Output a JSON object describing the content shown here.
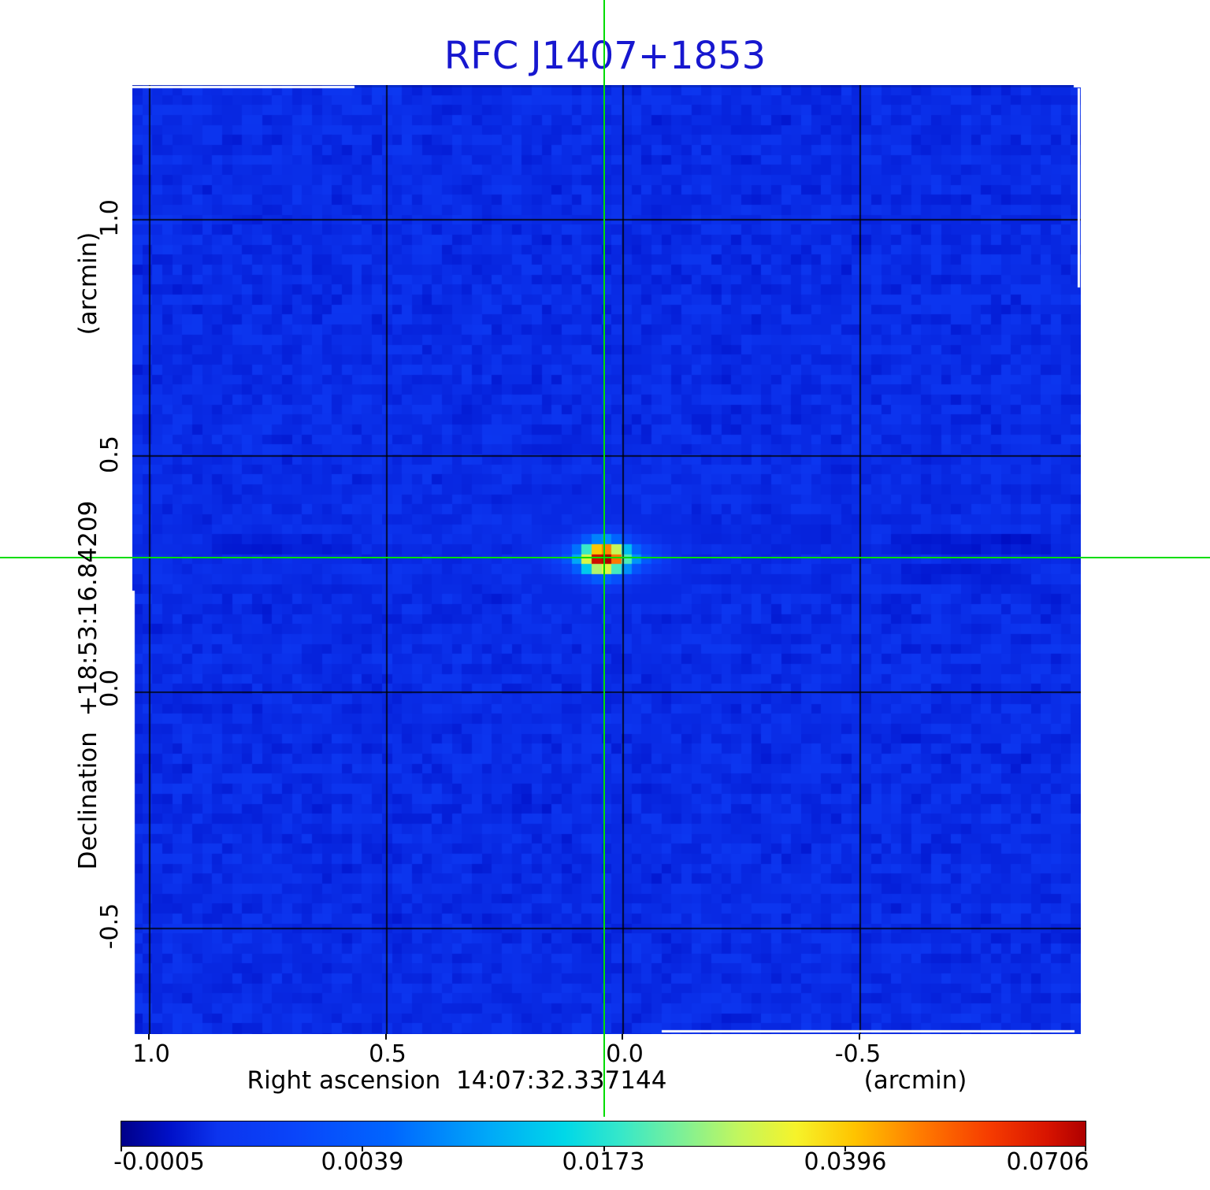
{
  "title": {
    "text": "RFC J1407+1853",
    "color": "#1717cf"
  },
  "y_axis": {
    "unit_label": "(arcmin)",
    "axis_label": "Declination  +18:53:16.84209",
    "ticks": [
      "1.0",
      "0.5",
      "0.0",
      "-0.5"
    ]
  },
  "x_axis": {
    "unit_label": "(arcmin)",
    "axis_label": "Right ascension  14:07:32.337144",
    "ticks": [
      "1.0",
      "0.5",
      "0.0",
      "-0.5"
    ]
  },
  "colorbar": {
    "labels": [
      "-0.0005",
      "0.0039",
      "0.0173",
      "0.0396",
      "0.0706"
    ]
  },
  "crosshair": {
    "color": "#00dd00"
  },
  "chart_data": {
    "type": "heatmap",
    "title": "RFC J1407+1853",
    "xlabel": "Right ascension  14:07:32.337144 (arcmin)",
    "ylabel": "Declination  +18:53:16.84209 (arcmin)",
    "x_ticks_arcmin": [
      1.0,
      0.5,
      0.0,
      -0.5
    ],
    "y_ticks_arcmin": [
      1.0,
      0.5,
      0.0,
      -0.5
    ],
    "x_range_arcmin": [
      1.035,
      -0.968
    ],
    "y_range_arcmin": [
      -0.725,
      1.283
    ],
    "grid": true,
    "intensity_scale": {
      "tick_values": [
        -0.0005,
        0.0039,
        0.0173,
        0.0396,
        0.0706
      ],
      "min": -0.0005,
      "max": 0.0706,
      "mapping": "quadratic"
    },
    "colormap_stops": [
      [
        0.0,
        "#000089"
      ],
      [
        0.05,
        "#0010c8"
      ],
      [
        0.1,
        "#0c34ee"
      ],
      [
        0.18,
        "#0a45fa"
      ],
      [
        0.28,
        "#0066ff"
      ],
      [
        0.38,
        "#00a8f8"
      ],
      [
        0.46,
        "#00d8e8"
      ],
      [
        0.52,
        "#38e8c8"
      ],
      [
        0.58,
        "#7cf098"
      ],
      [
        0.64,
        "#c2f65e"
      ],
      [
        0.7,
        "#f6f32a"
      ],
      [
        0.76,
        "#ffc400"
      ],
      [
        0.83,
        "#ff7a00"
      ],
      [
        0.9,
        "#f63c00"
      ],
      [
        0.96,
        "#d81400"
      ],
      [
        1.0,
        "#ae0000"
      ]
    ],
    "source": {
      "ra_offset_arcmin": 0.04,
      "dec_offset_arcmin": 0.283,
      "peak_intensity": 0.0706
    },
    "crosshair": {
      "ra_offset_arcmin": 0.04,
      "dec_offset_arcmin": 0.283
    }
  }
}
